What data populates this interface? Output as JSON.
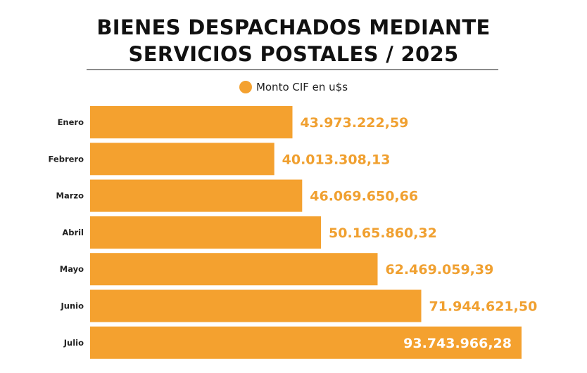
{
  "chart_data": {
    "type": "bar",
    "orientation": "horizontal",
    "title": "BIENES DESPACHADOS MEDIANTE SERVICIOS POSTALES / 2025",
    "title_lines": [
      "BIENES DESPACHADOS MEDIANTE",
      "SERVICIOS POSTALES / 2025"
    ],
    "legend": [
      "Monto CIF en u$s"
    ],
    "categories": [
      "Enero",
      "Febrero",
      "Marzo",
      "Abril",
      "Mayo",
      "Junio",
      "Julio"
    ],
    "values": [
      43973222.59,
      40013308.13,
      46069650.66,
      50165860.32,
      62469059.39,
      71944621.5,
      93743966.28
    ],
    "value_labels": [
      "43.973.222,59",
      "40.013.308,13",
      "46.069.650,66",
      "50.165.860,32",
      "62.469.059,39",
      "71.944.621,50",
      "93.743.966,28"
    ],
    "xlabel": "",
    "ylabel": "",
    "xlim": [
      0,
      93743966.28
    ],
    "grid": false,
    "legend_position": "top-center",
    "colors": {
      "bar": "#f4a12f",
      "label_outside": "#f0a030",
      "label_inside": "#ffffff"
    }
  }
}
